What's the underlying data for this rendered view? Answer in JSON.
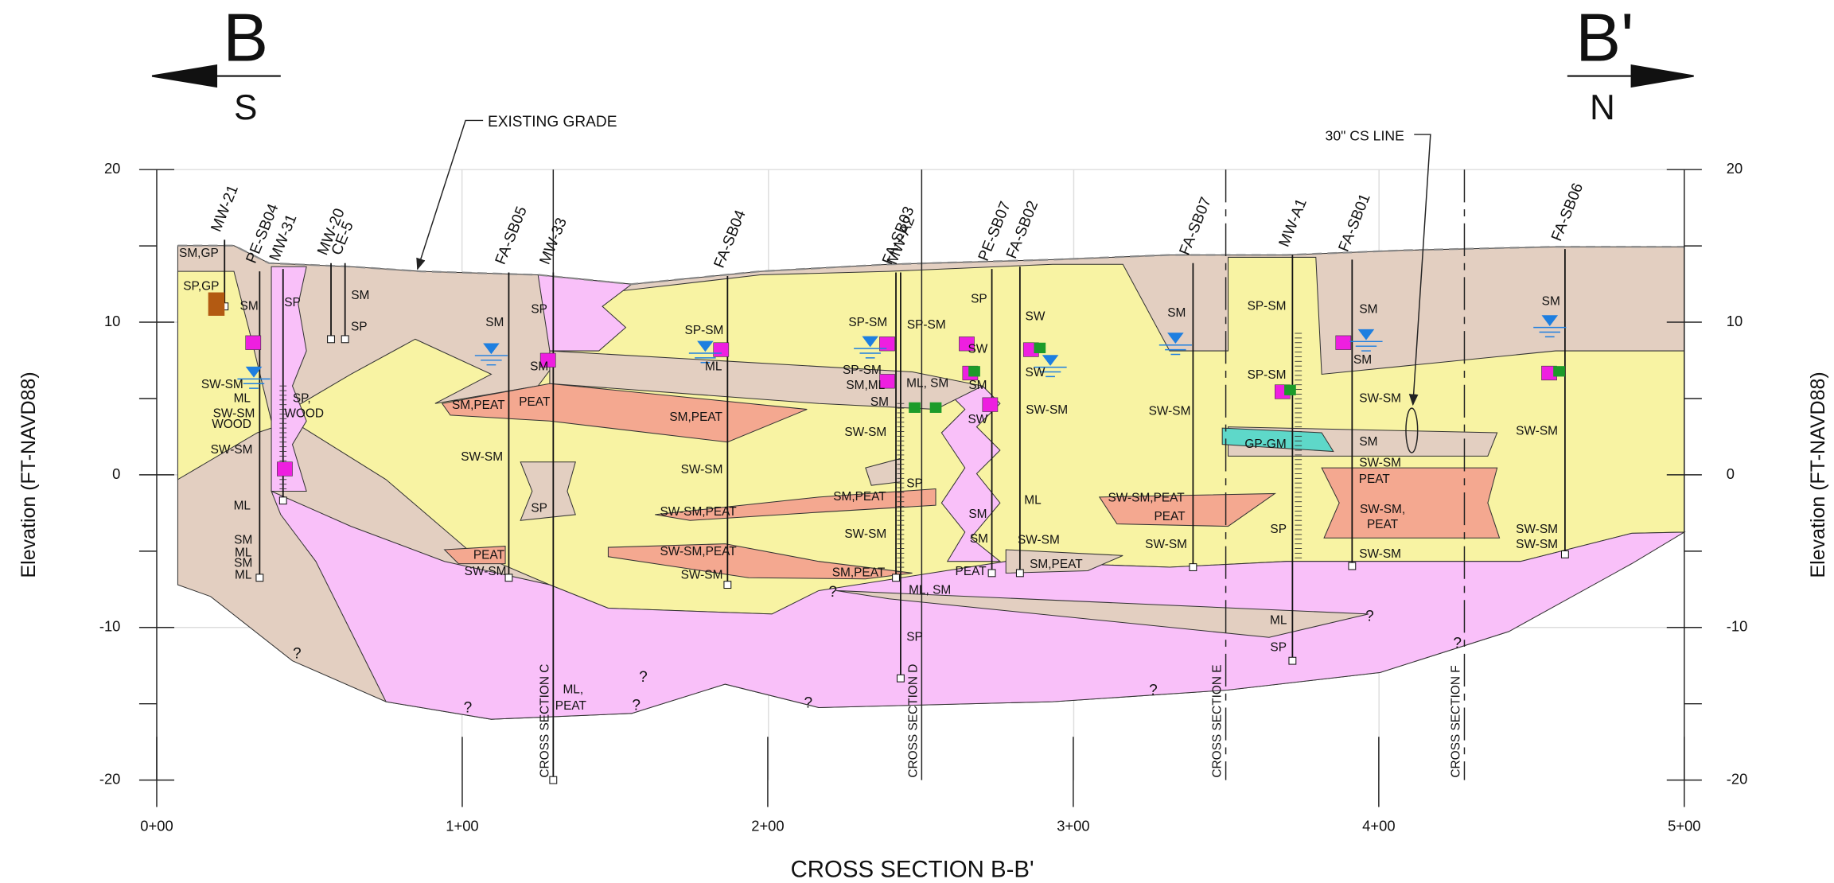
{
  "header": {
    "left_letter": "B",
    "left_direction": "S",
    "right_letter": "B'",
    "right_direction": "N"
  },
  "title": "CROSS SECTION B-B'",
  "y_axis_label": "Elevation (FT-NAVD88)",
  "x_ticks": [
    "0+00",
    "1+00",
    "2+00",
    "3+00",
    "4+00",
    "5+00"
  ],
  "y_ticks": [
    "20",
    "10",
    "0",
    "-10",
    "-20"
  ],
  "callouts": [
    "EXISTING GRADE",
    "30\" CS LINE"
  ],
  "borings": [
    "MW-21",
    "PE-SB04",
    "MW-31",
    "MW-20",
    "CE-5",
    "FA-SB05",
    "MW-33",
    "FA-SB04",
    "FA-SB03",
    "MW-A2",
    "PE-SB07",
    "FA-SB02",
    "FA-SB07",
    "MW-A1",
    "FA-SB01",
    "FA-SB06"
  ],
  "section_lines": [
    "CROSS SECTION C",
    "CROSS SECTION D",
    "CROSS SECTION E",
    "CROSS SECTION F"
  ],
  "unknown_marker": "?",
  "soil_labels": [
    "SM,GP",
    "SP,GP",
    "SM",
    "SP",
    "SM",
    "SP",
    "SW-SM",
    "ML",
    "SW-SM",
    "WOOD",
    "SP,",
    "WOOD",
    "SW-SM",
    "ML",
    "SM",
    "ML",
    "SM",
    "ML",
    "SM",
    "SP",
    "SM",
    "SM,PEAT",
    "PEAT",
    "SW-SM",
    "SP",
    "PEAT",
    "SW-SM",
    "ML,",
    "PEAT",
    "SP-SM",
    "ML",
    "SM,PEAT",
    "SW-SM",
    "SW-SM,PEAT",
    "SW-SM,PEAT",
    "SW-SM",
    "SP-SM",
    "SP-SM",
    "SP-SM",
    "SM,ML",
    "ML, SM",
    "SM",
    "SW-SM",
    "SP",
    "SM,PEAT",
    "SW-SM",
    "SM,PEAT",
    "ML, SM",
    "SP",
    "SP",
    "SW",
    "SW",
    "SW",
    "SM",
    "SW-SM",
    "SW",
    "ML",
    "SM",
    "SM",
    "PEAT",
    "SM,PEAT",
    "SW-SM",
    "SM",
    "SW-SM",
    "SW-SM,PEAT",
    "PEAT",
    "SW-SM",
    "SP-SM",
    "SP-SM",
    "GP-GM",
    "SP",
    "ML",
    "SP",
    "SM",
    "SM",
    "SW-SM",
    "SM",
    "SW-SM",
    "PEAT",
    "SW-SM,",
    "PEAT",
    "SW-SM",
    "SM",
    "SW-SM",
    "SW-SM",
    "SW-SM"
  ]
}
